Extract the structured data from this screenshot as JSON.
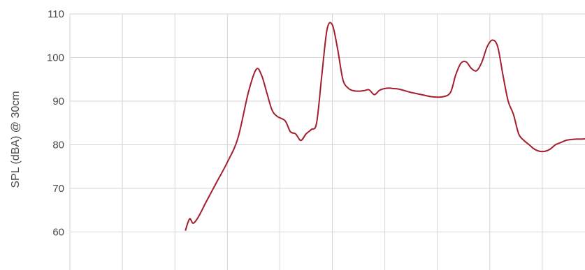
{
  "chart_data": {
    "type": "line",
    "title": "",
    "xlabel": "",
    "ylabel": "SPL (dBA) @ 30cm",
    "ylim": [
      50,
      110
    ],
    "y_ticks": [
      110,
      100,
      90,
      80,
      70,
      60
    ],
    "x_ticks": [
      0,
      1,
      2,
      3,
      4,
      5,
      6,
      7,
      8,
      9,
      10
    ],
    "xlim": [
      0,
      10.2
    ],
    "grid": true,
    "legend": "none",
    "colors": {
      "line": "#a31f2d",
      "grid": "#d6d6d6"
    },
    "series": [
      {
        "x": [
          2.2,
          2.28,
          2.35,
          2.45,
          2.6,
          2.8,
          3.0,
          3.2,
          3.4,
          3.55,
          3.65,
          3.75,
          3.85,
          3.95,
          4.1,
          4.2,
          4.3,
          4.4,
          4.5,
          4.6,
          4.7,
          4.8,
          4.9,
          5.0,
          5.1,
          5.2,
          5.3,
          5.4,
          5.5,
          5.6,
          5.7,
          5.8,
          5.9,
          6.0,
          6.1,
          6.15,
          6.25,
          6.35,
          6.5,
          6.7,
          6.9,
          7.1,
          7.25,
          7.35,
          7.45,
          7.55,
          7.65,
          7.75,
          7.85,
          7.95,
          8.05,
          8.15,
          8.25,
          8.35,
          8.45,
          8.55,
          8.65,
          8.75,
          8.85,
          8.95,
          9.05,
          9.15,
          9.25,
          9.35,
          9.45,
          9.55,
          9.65,
          9.75,
          9.85,
          9.95,
          10.05,
          10.2
        ],
        "values": [
          60.3,
          63.0,
          62.0,
          63.5,
          67.0,
          71.5,
          76.0,
          81.5,
          92.0,
          97.3,
          96.0,
          92.0,
          88.0,
          86.5,
          85.5,
          83.0,
          82.5,
          81.0,
          82.5,
          83.5,
          85.0,
          96.0,
          106.5,
          107.5,
          102.0,
          95.0,
          93.0,
          92.4,
          92.3,
          92.4,
          92.6,
          91.5,
          92.5,
          92.9,
          93.0,
          92.9,
          92.8,
          92.5,
          92.0,
          91.5,
          91.0,
          91.0,
          92.0,
          96.0,
          98.7,
          99.0,
          97.5,
          97.0,
          99.0,
          102.5,
          104.0,
          102.5,
          96.0,
          90.0,
          87.0,
          82.5,
          81.0,
          80.0,
          79.0,
          78.5,
          78.5,
          79.0,
          80.0,
          80.5,
          81.0,
          81.2,
          81.3,
          81.3,
          81.4,
          81.5,
          81.5,
          81.5
        ]
      }
    ]
  }
}
